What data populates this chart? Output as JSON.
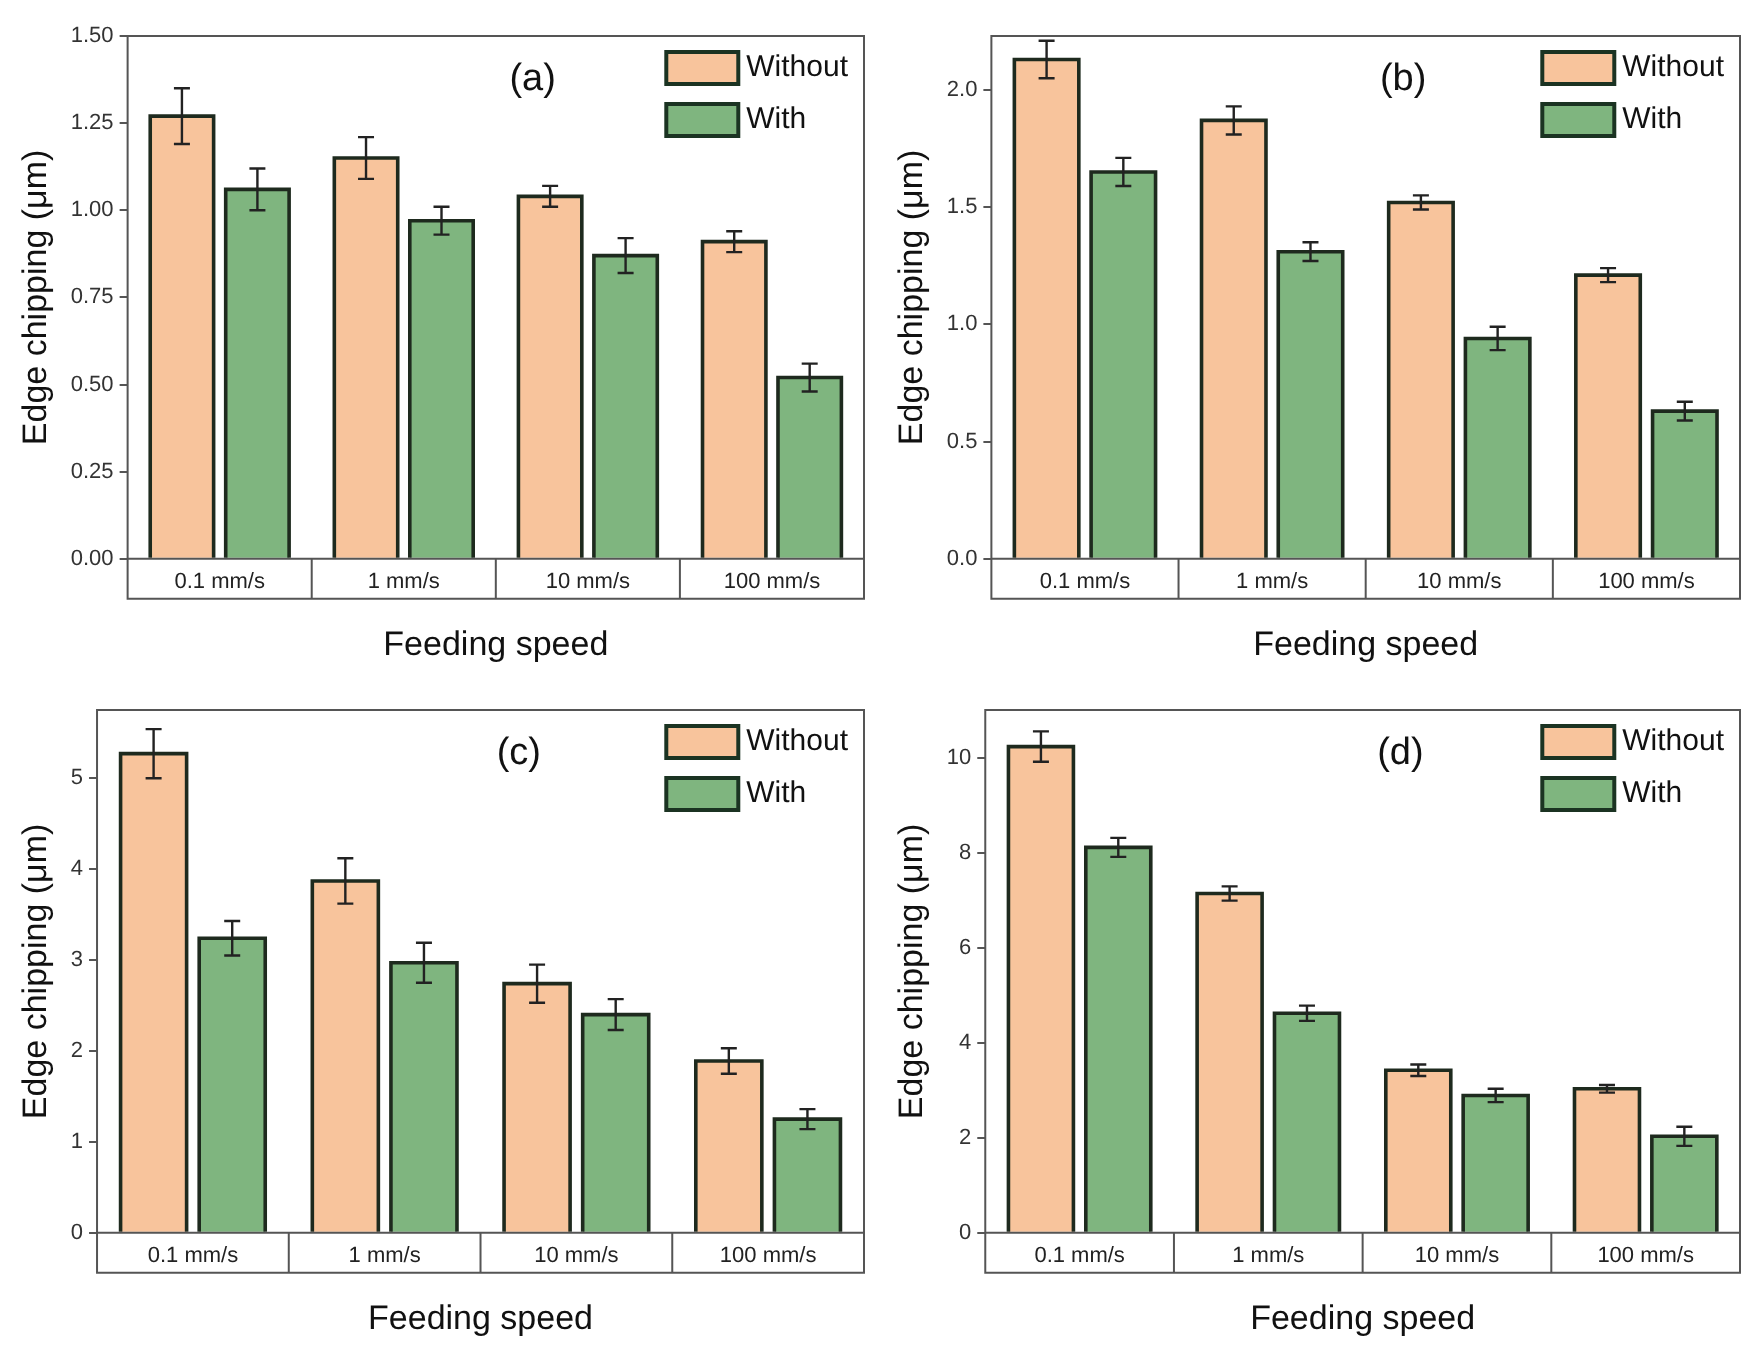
{
  "chart_data": [
    {
      "type": "bar",
      "title": "(a)",
      "xlabel": "Feeding speed",
      "ylabel": "Edge chipping (μm)",
      "categories": [
        "0.1 mm/s",
        "1 mm/s",
        "10 mm/s",
        "100 mm/s"
      ],
      "series": [
        {
          "name": "Without",
          "color": "#f8c49c",
          "values": [
            1.27,
            1.15,
            1.04,
            0.91
          ],
          "errors": [
            0.08,
            0.06,
            0.03,
            0.03
          ]
        },
        {
          "name": "With",
          "color": "#7fb57f",
          "values": [
            1.06,
            0.97,
            0.87,
            0.52
          ],
          "errors": [
            0.06,
            0.04,
            0.05,
            0.04
          ]
        }
      ],
      "ylim": [
        0,
        1.5
      ],
      "yticks": [
        {
          "value": 0,
          "label": "0.00"
        },
        {
          "value": 0.25,
          "label": "0.25"
        },
        {
          "value": 0.5,
          "label": "0.50"
        },
        {
          "value": 0.75,
          "label": "0.75"
        },
        {
          "value": 1,
          "label": "1.00"
        },
        {
          "value": 1.25,
          "label": "1.25"
        },
        {
          "value": 1.5,
          "label": "1.50"
        }
      ],
      "legend": "top right"
    },
    {
      "type": "bar",
      "title": "(b)",
      "xlabel": "Feeding speed",
      "ylabel": "Edge chipping (μm)",
      "categories": [
        "0.1 mm/s",
        "1 mm/s",
        "10 mm/s",
        "100 mm/s"
      ],
      "series": [
        {
          "name": "Without",
          "color": "#f8c49c",
          "values": [
            2.13,
            1.87,
            1.52,
            1.21
          ],
          "errors": [
            0.08,
            0.06,
            0.03,
            0.03
          ]
        },
        {
          "name": "With",
          "color": "#7fb57f",
          "values": [
            1.65,
            1.31,
            0.94,
            0.63
          ],
          "errors": [
            0.06,
            0.04,
            0.05,
            0.04
          ]
        }
      ],
      "ylim": [
        0,
        2.23
      ],
      "yticks": [
        {
          "value": 0,
          "label": "0.0"
        },
        0.5,
        {
          "value": 1,
          "label": "1.0"
        },
        1.5,
        {
          "value": 2,
          "label": "2.0"
        }
      ],
      "legend": "top right"
    },
    {
      "type": "bar",
      "title": "(c)",
      "xlabel": "Feeding speed",
      "ylabel": "Edge chipping (μm)",
      "categories": [
        "0.1 mm/s",
        "1 mm/s",
        "10 mm/s",
        "100 mm/s"
      ],
      "series": [
        {
          "name": "Without",
          "color": "#f8c49c",
          "values": [
            5.27,
            3.87,
            2.74,
            1.89
          ],
          "errors": [
            0.27,
            0.25,
            0.21,
            0.14
          ]
        },
        {
          "name": "With",
          "color": "#7fb57f",
          "values": [
            3.24,
            2.97,
            2.4,
            1.25
          ],
          "errors": [
            0.19,
            0.22,
            0.17,
            0.11
          ]
        }
      ],
      "ylim": [
        0,
        5.75
      ],
      "yticks": [
        0,
        1,
        2,
        3,
        4,
        5
      ],
      "legend": "top right"
    },
    {
      "type": "bar",
      "title": "(d)",
      "xlabel": "Feeding speed",
      "ylabel": "Edge chipping (μm)",
      "categories": [
        "0.1 mm/s",
        "1 mm/s",
        "10 mm/s",
        "100 mm/s"
      ],
      "series": [
        {
          "name": "Without",
          "color": "#f8c49c",
          "values": [
            10.23,
            7.14,
            3.42,
            3.03
          ],
          "errors": [
            0.32,
            0.15,
            0.12,
            0.08
          ]
        },
        {
          "name": "With",
          "color": "#7fb57f",
          "values": [
            8.11,
            4.62,
            2.89,
            2.03
          ],
          "errors": [
            0.2,
            0.16,
            0.14,
            0.2
          ]
        }
      ],
      "ylim": [
        0,
        11
      ],
      "yticks": [
        0,
        2,
        4,
        6,
        8,
        10
      ],
      "legend": "top right"
    }
  ]
}
